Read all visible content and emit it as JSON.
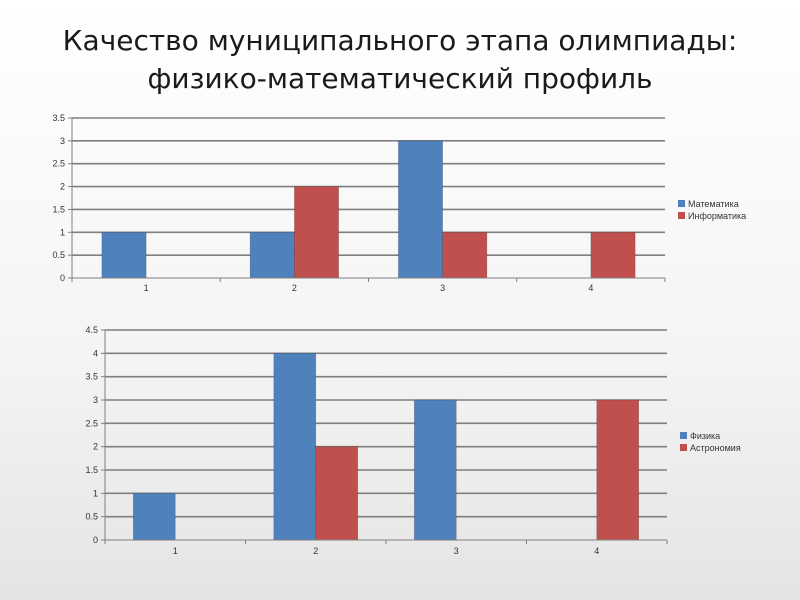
{
  "title": {
    "line1": "Качество  муниципального этапа олимпиады:",
    "line2": "физико-математический профиль"
  },
  "chart_data": [
    {
      "type": "bar",
      "categories": [
        "1",
        "2",
        "3",
        "4"
      ],
      "series": [
        {
          "name": "Математика",
          "values": [
            1,
            1,
            3,
            0
          ],
          "color": "#4f81bd"
        },
        {
          "name": "Информатика",
          "values": [
            0,
            2,
            1,
            1
          ],
          "color": "#c0504d"
        }
      ],
      "ylim": [
        0,
        3.5
      ],
      "yticks": [
        "0",
        "0.5",
        "1",
        "1.5",
        "2",
        "2.5",
        "3",
        "3.5"
      ],
      "grid": true,
      "legend": "right"
    },
    {
      "type": "bar",
      "categories": [
        "1",
        "2",
        "3",
        "4"
      ],
      "series": [
        {
          "name": "Физика",
          "values": [
            1,
            4,
            3,
            0
          ],
          "color": "#4f81bd"
        },
        {
          "name": "Астрономия",
          "values": [
            0,
            2,
            0,
            3
          ],
          "color": "#c0504d"
        }
      ],
      "ylim": [
        0,
        4.5
      ],
      "yticks": [
        "0",
        "0.5",
        "1",
        "1.5",
        "2",
        "2.5",
        "3",
        "3.5",
        "4",
        "4.5"
      ],
      "grid": true,
      "legend": "right"
    }
  ]
}
